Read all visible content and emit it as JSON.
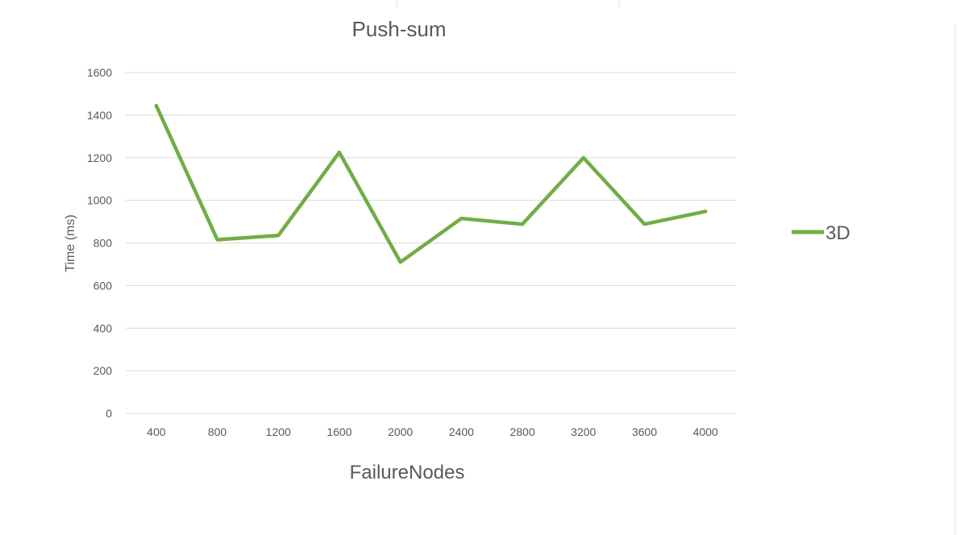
{
  "chart_data": {
    "type": "line",
    "title": "Push-sum",
    "xlabel": "FailureNodes",
    "ylabel": "Time (ms)",
    "categories": [
      "400",
      "800",
      "1200",
      "1600",
      "2000",
      "2400",
      "2800",
      "3200",
      "3600",
      "4000"
    ],
    "series": [
      {
        "name": "3D",
        "values": [
          1445,
          815,
          835,
          1225,
          710,
          915,
          888,
          1200,
          888,
          948
        ],
        "color": "#70ad47"
      }
    ],
    "ylim": [
      0,
      1600
    ],
    "yticks": [
      0,
      200,
      400,
      600,
      800,
      1000,
      1200,
      1400,
      1600
    ],
    "grid": true,
    "legend_position": "right"
  }
}
